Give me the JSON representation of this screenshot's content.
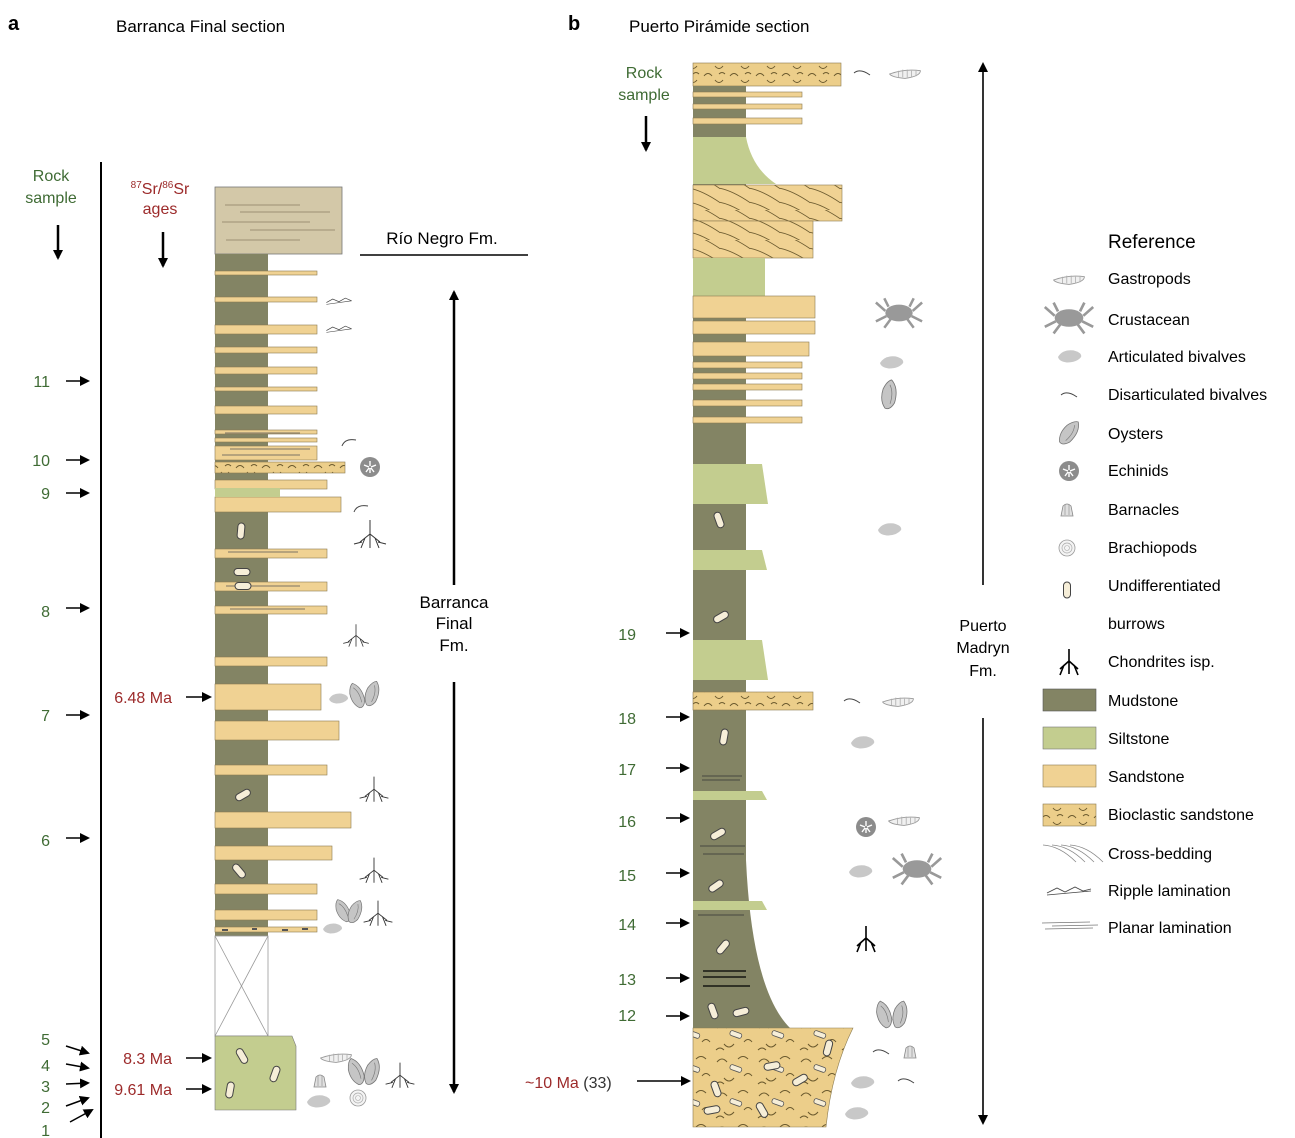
{
  "panel_a": {
    "letter": "a",
    "title": "Barranca Final section",
    "rock_sample_header": [
      "Rock",
      "sample"
    ],
    "sr_header": {
      "sup1": "87",
      "sr1": "Sr/",
      "sup2": "86",
      "sr2": "Sr",
      "line2": "ages"
    },
    "formation_top": "Río Negro Fm.",
    "formation_main": [
      "Barranca",
      "Final",
      "Fm."
    ],
    "samples": [
      {
        "label": "11"
      },
      {
        "label": "10"
      },
      {
        "label": "9"
      },
      {
        "label": "8"
      },
      {
        "label": "7"
      },
      {
        "label": "6"
      },
      {
        "label": "5"
      },
      {
        "label": "4"
      },
      {
        "label": "3"
      },
      {
        "label": "2"
      },
      {
        "label": "1"
      }
    ],
    "ages": [
      {
        "label": "6.48 Ma"
      },
      {
        "label": "8.3 Ma"
      },
      {
        "label": "9.61 Ma"
      }
    ]
  },
  "panel_b": {
    "letter": "b",
    "title": "Puerto Pirámide section",
    "rock_sample_header": [
      "Rock",
      "sample"
    ],
    "formation_main": [
      "Puerto",
      "Madryn",
      "Fm."
    ],
    "samples": [
      {
        "label": "19"
      },
      {
        "label": "18"
      },
      {
        "label": "17"
      },
      {
        "label": "16"
      },
      {
        "label": "15"
      },
      {
        "label": "14"
      },
      {
        "label": "13"
      },
      {
        "label": "12"
      }
    ],
    "age": {
      "label": "~10 Ma",
      "ref": "(33)"
    }
  },
  "legend": {
    "title": "Reference",
    "items": [
      {
        "label": "Gastropods",
        "icon": "gastropod-icon"
      },
      {
        "label": "Crustacean",
        "icon": "crab-icon"
      },
      {
        "label": "Articulated bivalves",
        "icon": "articulated-bivalve-icon"
      },
      {
        "label": "Disarticulated bivalves",
        "icon": "disarticulated-bivalve-icon"
      },
      {
        "label": "Oysters",
        "icon": "oyster-icon"
      },
      {
        "label": "Echinids",
        "icon": "echinid-icon"
      },
      {
        "label": "Barnacles",
        "icon": "barnacle-icon"
      },
      {
        "label": "Brachiopods",
        "icon": "brachiopod-icon"
      },
      {
        "label": "Undifferentiated",
        "icon": "burrow-icon"
      },
      {
        "label": "burrows",
        "icon": ""
      },
      {
        "label": "Chondrites isp.",
        "icon": "chondrites-icon"
      },
      {
        "label": "Mudstone",
        "icon": "mudstone-swatch"
      },
      {
        "label": "Siltstone",
        "icon": "siltstone-swatch"
      },
      {
        "label": "Sandstone",
        "icon": "sandstone-swatch"
      },
      {
        "label": "Bioclastic sandstone",
        "icon": "bioclastic-sandstone-swatch"
      },
      {
        "label": "Cross-bedding",
        "icon": "cross-bedding-icon"
      },
      {
        "label": "Ripple lamination",
        "icon": "ripple-lamination-icon"
      },
      {
        "label": "Planar lamination",
        "icon": "planar-lamination-icon"
      }
    ]
  },
  "colors": {
    "mudstone": "#838464",
    "siltstone": "#c3cd8f",
    "sandstone": "#f0d293",
    "bioclastic": "#ecce8a",
    "rio_negro": "#d3c8a8",
    "sample_text": "#3f6b34",
    "age_text": "#9c2a2a",
    "fossil_gray": "#b9b9b9",
    "dark_gray": "#8c8c8c"
  }
}
